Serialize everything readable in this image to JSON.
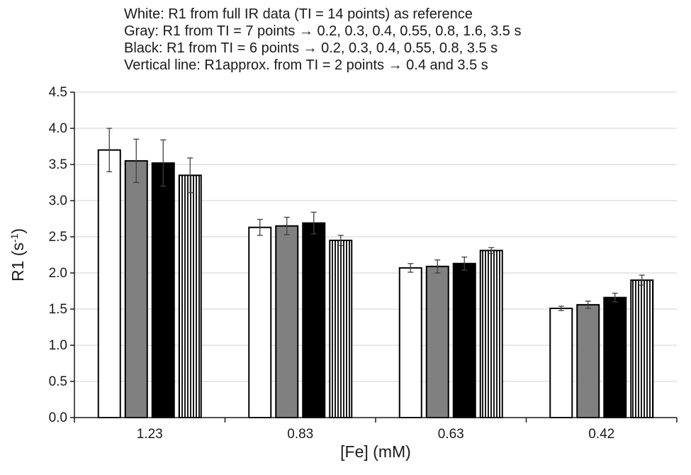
{
  "notes": [
    "White: R1 from full IR data (TI = 14 points) as reference",
    "Gray: R1 from TI = 7 points → 0.2, 0.3, 0.4, 0.55, 0.8, 1.6, 3.5 s",
    "Black: R1 from TI = 6 points → 0.2, 0.3, 0.4, 0.55, 0.8, 3.5 s",
    "Vertical line: R1approx. from TI = 2 points → 0.4 and 3.5 s"
  ],
  "chart_data": {
    "type": "bar",
    "title": "",
    "xlabel": "[Fe] (mM)",
    "ylabel": "R1 (s",
    "ylabel_sup": "-1",
    "ylabel_close": ")",
    "categories": [
      "1.23",
      "0.83",
      "0.63",
      "0.42"
    ],
    "ylim": [
      0,
      4.5
    ],
    "yticks": [
      "0.0",
      "0.5",
      "1.0",
      "1.5",
      "2.0",
      "2.5",
      "3.0",
      "3.5",
      "4.0",
      "4.5"
    ],
    "ytick_values": [
      0,
      0.5,
      1.0,
      1.5,
      2.0,
      2.5,
      3.0,
      3.5,
      4.0,
      4.5
    ],
    "grid": true,
    "series": [
      {
        "fill": "white",
        "color": "#ffffff",
        "values": [
          3.7,
          2.63,
          2.07,
          1.51
        ],
        "errors": [
          0.3,
          0.11,
          0.06,
          0.03
        ]
      },
      {
        "fill": "gray",
        "color": "#808080",
        "values": [
          3.55,
          2.65,
          2.09,
          1.56
        ],
        "errors": [
          0.3,
          0.12,
          0.09,
          0.05
        ]
      },
      {
        "fill": "black",
        "color": "#000000",
        "values": [
          3.52,
          2.69,
          2.13,
          1.66
        ],
        "errors": [
          0.32,
          0.15,
          0.09,
          0.06
        ]
      },
      {
        "fill": "vertical-lines",
        "color": "#ffffff",
        "values": [
          3.35,
          2.45,
          2.31,
          1.9
        ],
        "errors": [
          0.24,
          0.07,
          0.04,
          0.07
        ]
      }
    ]
  }
}
